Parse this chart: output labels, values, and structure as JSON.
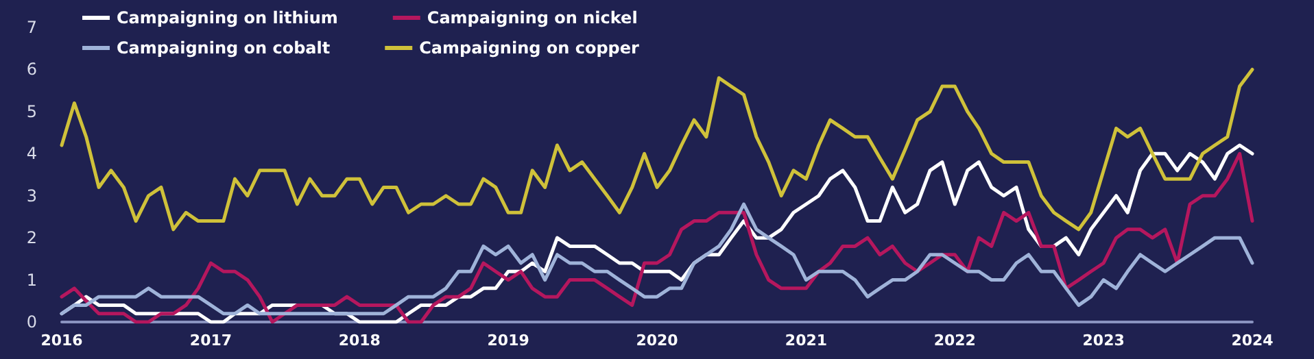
{
  "chart_data": {
    "type": "line",
    "x": [
      "2016-01",
      "2016-02",
      "2016-03",
      "2016-04",
      "2016-05",
      "2016-06",
      "2016-07",
      "2016-08",
      "2016-09",
      "2016-10",
      "2016-11",
      "2016-12",
      "2017-01",
      "2017-02",
      "2017-03",
      "2017-04",
      "2017-05",
      "2017-06",
      "2017-07",
      "2017-08",
      "2017-09",
      "2017-10",
      "2017-11",
      "2017-12",
      "2018-01",
      "2018-02",
      "2018-03",
      "2018-04",
      "2018-05",
      "2018-06",
      "2018-07",
      "2018-08",
      "2018-09",
      "2018-10",
      "2018-11",
      "2018-12",
      "2019-01",
      "2019-02",
      "2019-03",
      "2019-04",
      "2019-05",
      "2019-06",
      "2019-07",
      "2019-08",
      "2019-09",
      "2019-10",
      "2019-11",
      "2019-12",
      "2020-01",
      "2020-02",
      "2020-03",
      "2020-04",
      "2020-05",
      "2020-06",
      "2020-07",
      "2020-08",
      "2020-09",
      "2020-10",
      "2020-11",
      "2020-12",
      "2021-01",
      "2021-02",
      "2021-03",
      "2021-04",
      "2021-05",
      "2021-06",
      "2021-07",
      "2021-08",
      "2021-09",
      "2021-10",
      "2021-11",
      "2021-12",
      "2022-01",
      "2022-02",
      "2022-03",
      "2022-04",
      "2022-05",
      "2022-06",
      "2022-07",
      "2022-08",
      "2022-09",
      "2022-10",
      "2022-11",
      "2022-12",
      "2023-01",
      "2023-02",
      "2023-03",
      "2023-04",
      "2023-05",
      "2023-06",
      "2023-07",
      "2023-08",
      "2023-09",
      "2023-10",
      "2023-11",
      "2023-12",
      "2024-01"
    ],
    "series": [
      {
        "name": "Campaigning on lithium",
        "color": "#ffffff",
        "values": [
          0.2,
          0.4,
          0.6,
          0.4,
          0.4,
          0.4,
          0.2,
          0.2,
          0.2,
          0.2,
          0.2,
          0.2,
          0.0,
          0.0,
          0.2,
          0.2,
          0.2,
          0.4,
          0.4,
          0.4,
          0.4,
          0.4,
          0.2,
          0.2,
          0.0,
          0.0,
          0.0,
          0.0,
          0.2,
          0.4,
          0.4,
          0.4,
          0.6,
          0.6,
          0.8,
          0.8,
          1.2,
          1.2,
          1.4,
          1.2,
          2.0,
          1.8,
          1.8,
          1.8,
          1.6,
          1.4,
          1.4,
          1.2,
          1.2,
          1.2,
          1.0,
          1.4,
          1.6,
          1.6,
          2.0,
          2.4,
          2.0,
          2.0,
          2.2,
          2.6,
          2.8,
          3.0,
          3.4,
          3.6,
          3.2,
          2.4,
          2.4,
          3.2,
          2.6,
          2.8,
          3.6,
          3.8,
          2.8,
          3.6,
          3.8,
          3.2,
          3.0,
          3.2,
          2.2,
          1.8,
          1.8,
          2.0,
          1.6,
          2.2,
          2.6,
          3.0,
          2.6,
          3.6,
          4.0,
          4.0,
          3.6,
          4.0,
          3.8,
          3.4,
          4.0,
          4.2,
          4.0
        ]
      },
      {
        "name": "Campaigning on nickel",
        "color": "#b5175e",
        "values": [
          0.6,
          0.8,
          0.5,
          0.2,
          0.2,
          0.2,
          0.0,
          0.0,
          0.2,
          0.2,
          0.4,
          0.8,
          1.4,
          1.2,
          1.2,
          1.0,
          0.6,
          0.0,
          0.2,
          0.4,
          0.4,
          0.4,
          0.4,
          0.6,
          0.4,
          0.4,
          0.4,
          0.4,
          0.0,
          0.0,
          0.4,
          0.6,
          0.6,
          0.8,
          1.4,
          1.2,
          1.0,
          1.2,
          0.8,
          0.6,
          0.6,
          1.0,
          1.0,
          1.0,
          0.8,
          0.6,
          0.4,
          1.4,
          1.4,
          1.6,
          2.2,
          2.4,
          2.4,
          2.6,
          2.6,
          2.6,
          1.6,
          1.0,
          0.8,
          0.8,
          0.8,
          1.2,
          1.4,
          1.8,
          1.8,
          2.0,
          1.6,
          1.8,
          1.4,
          1.2,
          1.4,
          1.6,
          1.6,
          1.2,
          2.0,
          1.8,
          2.6,
          2.4,
          2.6,
          1.8,
          1.8,
          0.8,
          1.0,
          1.2,
          1.4,
          2.0,
          2.2,
          2.2,
          2.0,
          2.2,
          1.4,
          2.8,
          3.0,
          3.0,
          3.4,
          4.0,
          2.4
        ]
      },
      {
        "name": "Campaigning on cobalt",
        "color": "#9fb3d9",
        "values": [
          0.2,
          0.4,
          0.4,
          0.6,
          0.6,
          0.6,
          0.6,
          0.8,
          0.6,
          0.6,
          0.6,
          0.6,
          0.4,
          0.2,
          0.2,
          0.4,
          0.2,
          0.2,
          0.2,
          0.2,
          0.2,
          0.2,
          0.2,
          0.2,
          0.2,
          0.2,
          0.2,
          0.4,
          0.6,
          0.6,
          0.6,
          0.8,
          1.2,
          1.2,
          1.8,
          1.6,
          1.8,
          1.4,
          1.6,
          1.0,
          1.6,
          1.4,
          1.4,
          1.2,
          1.2,
          1.0,
          0.8,
          0.6,
          0.6,
          0.8,
          0.8,
          1.4,
          1.6,
          1.8,
          2.2,
          2.8,
          2.2,
          2.0,
          1.8,
          1.6,
          1.0,
          1.2,
          1.2,
          1.2,
          1.0,
          0.6,
          0.8,
          1.0,
          1.0,
          1.2,
          1.6,
          1.6,
          1.4,
          1.2,
          1.2,
          1.0,
          1.0,
          1.4,
          1.6,
          1.2,
          1.2,
          0.8,
          0.4,
          0.6,
          1.0,
          0.8,
          1.2,
          1.6,
          1.4,
          1.2,
          1.4,
          1.6,
          1.8,
          2.0,
          2.0,
          2.0,
          1.4
        ]
      },
      {
        "name": "Campaigning on copper",
        "color": "#cfc13a",
        "values": [
          4.2,
          5.2,
          4.4,
          3.2,
          3.6,
          3.2,
          2.4,
          3.0,
          3.2,
          2.2,
          2.6,
          2.4,
          2.4,
          2.4,
          3.4,
          3.0,
          3.6,
          3.6,
          3.6,
          2.8,
          3.4,
          3.0,
          3.0,
          3.4,
          3.4,
          2.8,
          3.2,
          3.2,
          2.6,
          2.8,
          2.8,
          3.0,
          2.8,
          2.8,
          3.4,
          3.2,
          2.6,
          2.6,
          3.6,
          3.2,
          4.2,
          3.6,
          3.8,
          3.4,
          3.0,
          2.6,
          3.2,
          4.0,
          3.2,
          3.6,
          4.2,
          4.8,
          4.4,
          5.8,
          5.6,
          5.4,
          4.4,
          3.8,
          3.0,
          3.6,
          3.4,
          4.2,
          4.8,
          4.6,
          4.4,
          4.4,
          3.9,
          3.4,
          4.1,
          4.8,
          5.0,
          5.6,
          5.6,
          5.0,
          4.6,
          4.0,
          3.8,
          3.8,
          3.8,
          3.0,
          2.6,
          2.4,
          2.2,
          2.6,
          3.6,
          4.6,
          4.4,
          4.6,
          4.0,
          3.4,
          3.4,
          3.4,
          4.0,
          4.2,
          4.4,
          5.6,
          6.0
        ]
      }
    ],
    "xlim": [
      "2016-01",
      "2024-01"
    ],
    "xticks": [
      "2016",
      "2017",
      "2018",
      "2019",
      "2020",
      "2021",
      "2022",
      "2023",
      "2024"
    ],
    "ylim": [
      0,
      7
    ],
    "yticks": [
      0,
      1,
      2,
      3,
      4,
      5,
      6,
      7
    ],
    "grid": false,
    "legend": "top left",
    "marker": "none",
    "line_style": "solid"
  }
}
